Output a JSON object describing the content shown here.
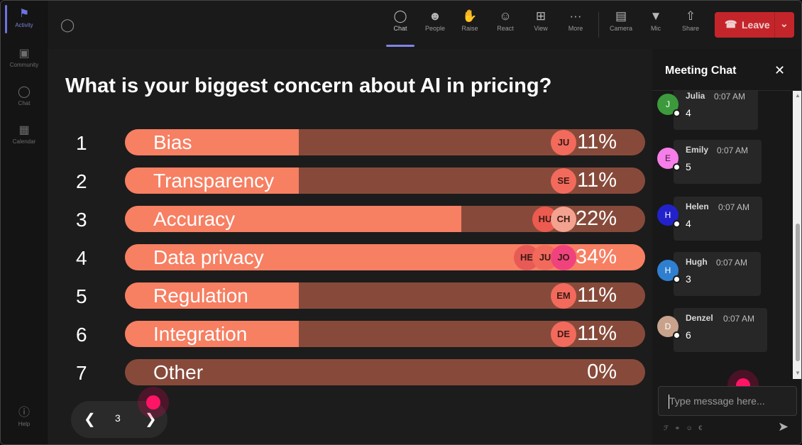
{
  "rail": {
    "items": [
      {
        "label": "Activity",
        "icon": "bell-icon"
      },
      {
        "label": "Community",
        "icon": "community-icon"
      },
      {
        "label": "Chat",
        "icon": "chat-icon"
      },
      {
        "label": "Calendar",
        "icon": "calendar-icon"
      },
      {
        "label": "Help",
        "icon": "help-icon"
      }
    ]
  },
  "toolbar": {
    "chat": "Chat",
    "people": "People",
    "raise": "Raise",
    "react": "React",
    "view": "View",
    "more": "More",
    "camera": "Camera",
    "mic": "Mic",
    "share": "Share",
    "leave": "Leave"
  },
  "poll": {
    "question": "What is your biggest concern about AI in pricing?",
    "options": [
      {
        "num": "1",
        "label": "Bias",
        "percent": "11%",
        "value": 11,
        "voters": [
          "JU"
        ]
      },
      {
        "num": "2",
        "label": "Transparency",
        "percent": "11%",
        "value": 11,
        "voters": [
          "SE"
        ]
      },
      {
        "num": "3",
        "label": "Accuracy",
        "percent": "22%",
        "value": 22,
        "voters": [
          "HU",
          "CH"
        ]
      },
      {
        "num": "4",
        "label": "Data privacy",
        "percent": "34%",
        "value": 34,
        "voters": [
          "HE",
          "JU",
          "JO"
        ]
      },
      {
        "num": "5",
        "label": "Regulation",
        "percent": "11%",
        "value": 11,
        "voters": [
          "EM"
        ]
      },
      {
        "num": "6",
        "label": "Integration",
        "percent": "11%",
        "value": 11,
        "voters": [
          "DE"
        ]
      },
      {
        "num": "7",
        "label": "Other",
        "percent": "0%",
        "value": 0,
        "voters": []
      }
    ]
  },
  "pager": {
    "page": "3"
  },
  "chat": {
    "title": "Meeting Chat",
    "messages": [
      {
        "name": "Julia",
        "time": "0:07 AM",
        "text": "4",
        "initial": "J",
        "color": "#3c9a3c"
      },
      {
        "name": "Emily",
        "time": "0:07 AM",
        "text": "5",
        "initial": "E",
        "color": "#f57ee8"
      },
      {
        "name": "Helen",
        "time": "0:07 AM",
        "text": "4",
        "initial": "H",
        "color": "#2222cc"
      },
      {
        "name": "Hugh",
        "time": "0:07 AM",
        "text": "3",
        "initial": "H",
        "color": "#2f7fd0"
      },
      {
        "name": "Denzel",
        "time": "0:07 AM",
        "text": "6",
        "initial": "D",
        "color": "#c9a28c"
      }
    ],
    "input_placeholder": "Type message here..."
  },
  "colors": {
    "bar_fill": "#f77f62",
    "bar_track": "#874a3a",
    "leave_button": "#c4252b",
    "accent": "#7e86e6",
    "cursor": "#ff1466"
  }
}
